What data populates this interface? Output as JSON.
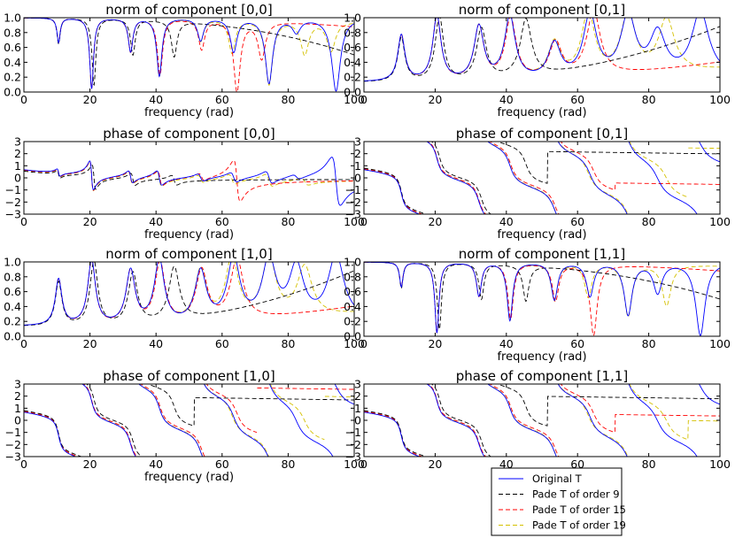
{
  "figure_type": "frequency response subplots",
  "legend": [
    {
      "label": "Original T",
      "color": "#0000ff",
      "dash": "solid"
    },
    {
      "label": "Pade T of order 9",
      "color": "#000000",
      "dash": "dashed"
    },
    {
      "label": "Pade T of order 15",
      "color": "#ff0000",
      "dash": "dashed"
    },
    {
      "label": "Pade T of order 19",
      "color": "#d4c000",
      "dash": "dashed"
    }
  ],
  "colors": {
    "original": "#0000ff",
    "order9": "#000000",
    "order15": "#ff0000",
    "order19": "#d4c000"
  },
  "chart_data": [
    {
      "id": "norm00",
      "type": "line",
      "kind": "norm",
      "title": "norm of component [0,0]",
      "xlabel": "frequency (rad)",
      "xlim": [
        0,
        100
      ],
      "ylim": [
        0.0,
        1.0
      ],
      "xticks": [
        0,
        20,
        40,
        60,
        80,
        100
      ],
      "xtick_labels": [
        "0",
        "20",
        "40",
        "60",
        "80",
        "100"
      ],
      "yticks": [
        0.0,
        0.2,
        0.4,
        0.6,
        0.8,
        1.0
      ],
      "ytick_labels": [
        "0.0",
        "0.2",
        "0.4",
        "0.6",
        "0.8",
        "1.0"
      ],
      "series": [
        {
          "name": "Original T",
          "resonances": [
            10.5,
            20.5,
            32.3,
            41.0,
            53.5,
            63.5,
            74.2,
            82.5,
            94.5
          ],
          "depth": [
            0.67,
            0.05,
            0.55,
            0.22,
            0.7,
            0.55,
            0.13,
            0.82,
            0.02
          ]
        },
        {
          "name": "Pade T of order 9",
          "resonances": [
            10.5,
            21.2,
            33.0,
            45.5
          ],
          "depth": [
            0.65,
            0.1,
            0.52,
            0.52
          ],
          "baseline_drop": 0.5
        },
        {
          "name": "Pade T of order 15",
          "resonances": [
            10.5,
            20.5,
            32.3,
            41.2,
            53.8,
            64.5,
            72.0
          ],
          "depth": [
            0.67,
            0.05,
            0.55,
            0.25,
            0.6,
            0.05,
            0.5
          ],
          "baseline_drop": 0.12
        },
        {
          "name": "Pade T of order 19",
          "resonances": [
            10.5,
            20.5,
            32.3,
            41.0,
            53.5,
            63.0,
            74.2,
            85.0,
            93.0
          ],
          "depth": [
            0.67,
            0.05,
            0.55,
            0.22,
            0.7,
            0.55,
            0.13,
            0.55,
            0.6
          ],
          "baseline_drop": 0.05
        }
      ]
    },
    {
      "id": "norm01",
      "type": "line",
      "kind": "norm_peaks",
      "title": "norm of component [0,1]",
      "xlabel": "frequency (rad)",
      "xlim": [
        0,
        100
      ],
      "ylim": [
        0.0,
        1.0
      ],
      "xticks": [
        0,
        20,
        40,
        60,
        80,
        100
      ],
      "xtick_labels": [
        "0",
        "20",
        "40",
        "60",
        "80",
        "100"
      ],
      "yticks": [
        0.0,
        0.2,
        0.4,
        0.6,
        0.8,
        1.0
      ],
      "ytick_labels": [
        "0.0",
        "0.2",
        "0.4",
        "0.6",
        "0.8",
        "1.0"
      ],
      "series": [
        {
          "name": "Original T",
          "resonances": [
            10.5,
            20.5,
            32.3,
            41.0,
            53.5,
            63.5,
            74.2,
            82.5,
            94.5
          ],
          "peaks": [
            0.75,
            1.0,
            0.85,
            0.98,
            0.6,
            0.98,
            0.95,
            0.7,
            1.0
          ]
        },
        {
          "name": "Pade T of order 9",
          "resonances": [
            10.5,
            21.2,
            33.0,
            45.5
          ],
          "peaks": [
            0.72,
            1.0,
            0.82,
            0.9
          ],
          "rise_end": 0.88
        },
        {
          "name": "Pade T of order 15",
          "resonances": [
            10.5,
            20.5,
            32.3,
            41.2,
            53.8,
            64.5
          ],
          "peaks": [
            0.75,
            1.0,
            0.85,
            0.95,
            0.6,
            1.0
          ],
          "rise_end": 0.4
        },
        {
          "name": "Pade T of order 19",
          "resonances": [
            10.5,
            20.5,
            32.3,
            41.0,
            53.5,
            63.0,
            74.2,
            85.0
          ],
          "peaks": [
            0.75,
            1.0,
            0.85,
            0.98,
            0.6,
            0.98,
            0.95,
            0.85
          ],
          "rise_end": 0.3
        }
      ]
    },
    {
      "id": "phase00",
      "type": "line",
      "kind": "phase_small",
      "title": "phase of component [0,0]",
      "xlabel": "frequency (rad)",
      "xlim": [
        0,
        100
      ],
      "ylim": [
        -3,
        3
      ],
      "xticks": [
        0,
        20,
        40,
        60,
        80,
        100
      ],
      "xtick_labels": [
        "0",
        "20",
        "40",
        "60",
        "80",
        "100"
      ],
      "yticks": [
        -3,
        -2,
        -1,
        0,
        1,
        2,
        3
      ],
      "ytick_labels": [
        "−3",
        "−2",
        "−1",
        "0",
        "1",
        "2",
        "3"
      ],
      "series": [
        {
          "name": "Original T",
          "resonances": [
            10.5,
            20.5,
            32.3,
            41.0,
            53.5,
            63.5,
            74.2,
            82.5,
            94.5
          ],
          "amps": [
            0.3,
            1.2,
            0.5,
            0.6,
            0.3,
            0.4,
            0.5,
            0.2,
            2.0
          ]
        },
        {
          "name": "Pade T of order 9",
          "resonances": [
            10.5,
            21.2,
            33.0,
            45.5
          ],
          "amps": [
            0.3,
            1.0,
            0.5,
            0.4
          ]
        },
        {
          "name": "Pade T of order 15",
          "resonances": [
            10.5,
            20.5,
            32.3,
            41.2,
            53.8,
            64.5
          ],
          "amps": [
            0.3,
            1.2,
            0.5,
            0.6,
            0.3,
            1.7
          ]
        },
        {
          "name": "Pade T of order 19",
          "resonances": [
            10.5,
            20.5,
            32.3,
            41.0,
            53.5,
            63.0,
            74.2,
            85.0
          ],
          "amps": [
            0.3,
            1.2,
            0.5,
            0.6,
            0.3,
            0.4,
            0.5,
            0.3
          ]
        }
      ]
    },
    {
      "id": "phase01",
      "type": "line",
      "kind": "phase_wrap",
      "title": "phase of component [0,1]",
      "xlabel": "frequency (rad)",
      "xlim": [
        0,
        100
      ],
      "ylim": [
        -3,
        3
      ],
      "xticks": [
        0,
        20,
        40,
        60,
        80,
        100
      ],
      "xtick_labels": [
        "0",
        "20",
        "40",
        "60",
        "80",
        "100"
      ],
      "yticks": [
        -3,
        -2,
        -1,
        0,
        1,
        2,
        3
      ],
      "ytick_labels": [
        "−3",
        "−2",
        "−1",
        "0",
        "1",
        "2",
        "3"
      ],
      "series": [
        {
          "name": "Original T",
          "resonances": [
            10.5,
            20.5,
            32.3,
            41.0,
            53.5,
            63.5,
            74.2,
            82.5,
            94.5
          ]
        },
        {
          "name": "Pade T of order 9",
          "resonances": [
            10.5,
            21.2,
            33.0,
            45.5
          ],
          "tail_level": 2.2
        },
        {
          "name": "Pade T of order 15",
          "resonances": [
            10.5,
            20.5,
            32.3,
            41.2,
            53.8,
            64.5
          ],
          "tail_level": -0.4
        },
        {
          "name": "Pade T of order 19",
          "resonances": [
            10.5,
            20.5,
            32.3,
            41.0,
            53.5,
            63.0,
            74.2,
            85.0
          ],
          "tail_level": 2.5
        }
      ]
    },
    {
      "id": "norm10",
      "type": "line",
      "kind": "norm_peaks",
      "title": "norm of component [1,0]",
      "xlabel": "",
      "xlim": [
        0,
        100
      ],
      "ylim": [
        0.0,
        1.0
      ],
      "xticks": [
        0,
        20,
        40,
        60,
        80,
        100
      ],
      "xtick_labels": [
        "0",
        "20",
        "40",
        "60",
        "80",
        "100"
      ],
      "yticks": [
        0.0,
        0.2,
        0.4,
        0.6,
        0.8,
        1.0
      ],
      "ytick_labels": [
        "0.0",
        "0.2",
        "0.4",
        "0.6",
        "0.8",
        "1.0"
      ],
      "series": [
        {
          "name": "Original T",
          "resonances": [
            10.5,
            20.5,
            32.3,
            41.0,
            53.5,
            63.5,
            74.2,
            82.5,
            94.5
          ],
          "peaks": [
            0.75,
            1.0,
            0.85,
            0.98,
            0.82,
            0.98,
            0.95,
            0.85,
            1.0
          ]
        },
        {
          "name": "Pade T of order 9",
          "resonances": [
            10.5,
            21.2,
            33.0,
            45.5
          ],
          "peaks": [
            0.72,
            1.0,
            0.82,
            0.85
          ],
          "rise_end": 0.88
        },
        {
          "name": "Pade T of order 15",
          "resonances": [
            10.5,
            20.5,
            32.3,
            41.2,
            53.8,
            64.5
          ],
          "peaks": [
            0.75,
            1.0,
            0.85,
            0.95,
            0.82,
            0.95
          ],
          "rise_end": 0.4
        },
        {
          "name": "Pade T of order 19",
          "resonances": [
            10.5,
            20.5,
            32.3,
            41.0,
            53.5,
            63.0,
            74.2,
            85.0
          ],
          "peaks": [
            0.75,
            1.0,
            0.85,
            0.98,
            0.82,
            0.98,
            0.95,
            0.8
          ],
          "rise_end": 0.3
        }
      ]
    },
    {
      "id": "norm11",
      "type": "line",
      "kind": "norm",
      "title": "norm of component [1,1]",
      "xlabel": "frequency (rad)",
      "xlim": [
        0,
        100
      ],
      "ylim": [
        0.0,
        1.0
      ],
      "xticks": [
        0,
        20,
        40,
        60,
        80,
        100
      ],
      "xtick_labels": [
        "0",
        "20",
        "40",
        "60",
        "80",
        "100"
      ],
      "yticks": [
        0.0,
        0.2,
        0.4,
        0.6,
        0.8,
        1.0
      ],
      "ytick_labels": [
        "0.0",
        "0.2",
        "0.4",
        "0.6",
        "0.8",
        "1.0"
      ],
      "series": [
        {
          "name": "Original T",
          "resonances": [
            10.5,
            20.5,
            32.3,
            41.0,
            53.5,
            63.5,
            74.2,
            82.5,
            94.5
          ],
          "depth": [
            0.67,
            0.05,
            0.55,
            0.22,
            0.5,
            0.55,
            0.3,
            0.6,
            0.02
          ]
        },
        {
          "name": "Pade T of order 9",
          "resonances": [
            10.5,
            21.2,
            33.0,
            45.5
          ],
          "depth": [
            0.65,
            0.1,
            0.52,
            0.52
          ],
          "baseline_drop": 0.5
        },
        {
          "name": "Pade T of order 15",
          "resonances": [
            10.5,
            20.5,
            32.3,
            41.2,
            53.8,
            64.5
          ],
          "depth": [
            0.67,
            0.05,
            0.55,
            0.25,
            0.5,
            0.05
          ],
          "baseline_drop": 0.12
        },
        {
          "name": "Pade T of order 19",
          "resonances": [
            10.5,
            20.5,
            32.3,
            41.0,
            53.5,
            63.0,
            74.2,
            85.0
          ],
          "depth": [
            0.67,
            0.05,
            0.55,
            0.22,
            0.5,
            0.55,
            0.3,
            0.45
          ],
          "baseline_drop": 0.05
        }
      ]
    },
    {
      "id": "phase10",
      "type": "line",
      "kind": "phase_wrap",
      "title": "phase of component [1,0]",
      "xlabel": "frequency (rad)",
      "xlim": [
        0,
        100
      ],
      "ylim": [
        -3,
        3
      ],
      "xticks": [
        0,
        20,
        40,
        60,
        80,
        100
      ],
      "xtick_labels": [
        "0",
        "20",
        "40",
        "60",
        "80",
        "100"
      ],
      "yticks": [
        -3,
        -2,
        -1,
        0,
        1,
        2,
        3
      ],
      "ytick_labels": [
        "−3",
        "−2",
        "−1",
        "0",
        "1",
        "2",
        "3"
      ],
      "series": [
        {
          "name": "Original T",
          "resonances": [
            10.5,
            20.5,
            32.3,
            41.0,
            53.5,
            63.5,
            74.2,
            82.5,
            94.5
          ]
        },
        {
          "name": "Pade T of order 9",
          "resonances": [
            10.5,
            21.2,
            33.0,
            45.5
          ],
          "tail_level": 1.9
        },
        {
          "name": "Pade T of order 15",
          "resonances": [
            10.5,
            20.5,
            32.3,
            41.2,
            53.8,
            64.5
          ],
          "tail_level": 2.7
        },
        {
          "name": "Pade T of order 19",
          "resonances": [
            10.5,
            20.5,
            32.3,
            41.0,
            53.5,
            63.0,
            74.2,
            85.0
          ],
          "tail_level": 2.0
        }
      ]
    },
    {
      "id": "phase11",
      "type": "line",
      "kind": "phase_wrap",
      "title": "phase of component [1,1]",
      "xlabel": "",
      "xlim": [
        0,
        100
      ],
      "ylim": [
        -3,
        3
      ],
      "xticks": [
        0,
        20,
        40,
        60,
        80,
        100
      ],
      "xtick_labels": [
        "0",
        "20",
        "40",
        "60",
        "80",
        "100"
      ],
      "yticks": [
        -3,
        -2,
        -1,
        0,
        1,
        2,
        3
      ],
      "ytick_labels": [
        "−3",
        "−2",
        "−1",
        "0",
        "1",
        "2",
        "3"
      ],
      "series": [
        {
          "name": "Original T",
          "resonances": [
            10.5,
            20.5,
            32.3,
            41.0,
            53.5,
            63.5,
            74.2,
            82.5,
            94.5
          ]
        },
        {
          "name": "Pade T of order 9",
          "resonances": [
            10.5,
            21.2,
            33.0,
            45.5
          ],
          "tail_level": 2.0
        },
        {
          "name": "Pade T of order 15",
          "resonances": [
            10.5,
            20.5,
            32.3,
            41.2,
            53.8,
            64.5
          ],
          "tail_level": 0.5
        },
        {
          "name": "Pade T of order 19",
          "resonances": [
            10.5,
            20.5,
            32.3,
            41.0,
            53.5,
            63.0,
            74.2,
            85.0
          ],
          "tail_level": 0.0
        }
      ]
    }
  ]
}
